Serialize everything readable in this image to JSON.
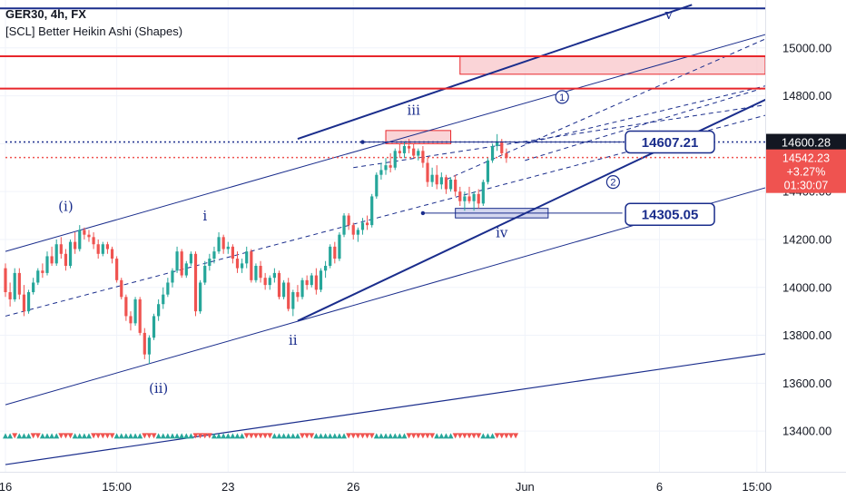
{
  "legend": {
    "symbol_line": "GER30, 4h, FX",
    "indicator_line": "[SCL] Better Heikin Ashi (Shapes)"
  },
  "colors": {
    "bull": "#26a69a",
    "bear": "#ef5350",
    "trend_line": "#1a2d8c",
    "resistance": "#e8262b",
    "zone_fill": "#f8c6c9",
    "demand_fill": "#c5cae9"
  },
  "chart_data": {
    "type": "candlestick",
    "title": "GER30, 4h, FX",
    "subtitle": "[SCL] Better Heikin Ashi (Shapes)",
    "ylim": [
      13230,
      15200
    ],
    "y_ticks": [
      13400,
      13600,
      13800,
      14000,
      14200,
      14400,
      14600,
      14800,
      15000
    ],
    "x_ticks": [
      {
        "label": "16",
        "bar": 0
      },
      {
        "label": "15:00",
        "bar": 24
      },
      {
        "label": "23",
        "bar": 48
      },
      {
        "label": "26",
        "bar": 75
      },
      {
        "label": "Jun",
        "bar": 112
      },
      {
        "label": "6",
        "bar": 141
      },
      {
        "label": "15:00",
        "bar": 162
      }
    ],
    "grid": true,
    "candles": [
      [
        14080,
        14100,
        13960,
        13980
      ],
      [
        13980,
        14020,
        13920,
        13950
      ],
      [
        13950,
        14080,
        13940,
        14060
      ],
      [
        14060,
        14080,
        13950,
        13970
      ],
      [
        13970,
        14010,
        13880,
        13900
      ],
      [
        13900,
        13990,
        13890,
        13980
      ],
      [
        13980,
        14040,
        13970,
        14020
      ],
      [
        14020,
        14080,
        14010,
        14070
      ],
      [
        14070,
        14100,
        14040,
        14060
      ],
      [
        14060,
        14150,
        14050,
        14130
      ],
      [
        14130,
        14170,
        14090,
        14100
      ],
      [
        14100,
        14200,
        14090,
        14180
      ],
      [
        14180,
        14210,
        14120,
        14140
      ],
      [
        14140,
        14160,
        14070,
        14090
      ],
      [
        14090,
        14200,
        14080,
        14190
      ],
      [
        14190,
        14230,
        14140,
        14160
      ],
      [
        14160,
        14260,
        14150,
        14240
      ],
      [
        14240,
        14250,
        14200,
        14220
      ],
      [
        14220,
        14240,
        14190,
        14210
      ],
      [
        14210,
        14230,
        14160,
        14180
      ],
      [
        14180,
        14200,
        14120,
        14140
      ],
      [
        14140,
        14190,
        14130,
        14180
      ],
      [
        14180,
        14190,
        14140,
        14160
      ],
      [
        14160,
        14170,
        14100,
        14120
      ],
      [
        14120,
        14130,
        14020,
        14030
      ],
      [
        14030,
        14040,
        13950,
        13960
      ],
      [
        13960,
        13970,
        13860,
        13880
      ],
      [
        13880,
        13900,
        13820,
        13850
      ],
      [
        13850,
        13960,
        13840,
        13950
      ],
      [
        13950,
        13960,
        13800,
        13810
      ],
      [
        13810,
        13830,
        13700,
        13720
      ],
      [
        13720,
        13800,
        13680,
        13790
      ],
      [
        13790,
        13890,
        13780,
        13880
      ],
      [
        13880,
        13950,
        13860,
        13930
      ],
      [
        13930,
        14000,
        13910,
        13970
      ],
      [
        13970,
        14040,
        13960,
        14020
      ],
      [
        14020,
        14080,
        14000,
        14070
      ],
      [
        14070,
        14170,
        14060,
        14150
      ],
      [
        14150,
        14160,
        14040,
        14050
      ],
      [
        14050,
        14110,
        14040,
        14100
      ],
      [
        14100,
        14150,
        14090,
        14140
      ],
      [
        14140,
        14150,
        13880,
        13900
      ],
      [
        13900,
        14030,
        13890,
        14020
      ],
      [
        14020,
        14110,
        14010,
        14090
      ],
      [
        14090,
        14140,
        14070,
        14120
      ],
      [
        14120,
        14170,
        14100,
        14150
      ],
      [
        14150,
        14230,
        14140,
        14210
      ],
      [
        14210,
        14220,
        14140,
        14160
      ],
      [
        14160,
        14190,
        14140,
        14170
      ],
      [
        14170,
        14180,
        14100,
        14120
      ],
      [
        14120,
        14150,
        14060,
        14080
      ],
      [
        14080,
        14120,
        14060,
        14100
      ],
      [
        14100,
        14170,
        14080,
        14150
      ],
      [
        14150,
        14160,
        14020,
        14030
      ],
      [
        14030,
        14100,
        14020,
        14090
      ],
      [
        14090,
        14110,
        14020,
        14040
      ],
      [
        14040,
        14060,
        13990,
        14010
      ],
      [
        14010,
        14050,
        13990,
        14040
      ],
      [
        14040,
        14080,
        14020,
        14060
      ],
      [
        14060,
        14070,
        13950,
        13960
      ],
      [
        13960,
        14030,
        13950,
        14020
      ],
      [
        14020,
        14040,
        13900,
        13910
      ],
      [
        13910,
        13990,
        13880,
        13980
      ],
      [
        13980,
        14010,
        13940,
        13960
      ],
      [
        13960,
        14040,
        13950,
        14030
      ],
      [
        14030,
        14050,
        13990,
        14010
      ],
      [
        14010,
        14060,
        14000,
        14050
      ],
      [
        14050,
        14080,
        13970,
        13990
      ],
      [
        13990,
        14080,
        13980,
        14070
      ],
      [
        14070,
        14110,
        14040,
        14090
      ],
      [
        14090,
        14180,
        14080,
        14170
      ],
      [
        14170,
        14190,
        14100,
        14120
      ],
      [
        14120,
        14230,
        14110,
        14220
      ],
      [
        14220,
        14310,
        14210,
        14300
      ],
      [
        14300,
        14310,
        14240,
        14260
      ],
      [
        14260,
        14270,
        14200,
        14220
      ],
      [
        14220,
        14250,
        14190,
        14240
      ],
      [
        14240,
        14290,
        14220,
        14270
      ],
      [
        14270,
        14300,
        14240,
        14260
      ],
      [
        14260,
        14390,
        14250,
        14380
      ],
      [
        14380,
        14480,
        14370,
        14470
      ],
      [
        14470,
        14520,
        14450,
        14490
      ],
      [
        14490,
        14540,
        14470,
        14510
      ],
      [
        14510,
        14560,
        14480,
        14500
      ],
      [
        14500,
        14580,
        14490,
        14570
      ],
      [
        14570,
        14600,
        14540,
        14560
      ],
      [
        14560,
        14610,
        14540,
        14590
      ],
      [
        14590,
        14620,
        14560,
        14580
      ],
      [
        14580,
        14600,
        14540,
        14550
      ],
      [
        14550,
        14580,
        14530,
        14570
      ],
      [
        14570,
        14590,
        14500,
        14520
      ],
      [
        14520,
        14540,
        14420,
        14440
      ],
      [
        14440,
        14500,
        14420,
        14470
      ],
      [
        14470,
        14510,
        14410,
        14430
      ],
      [
        14430,
        14480,
        14410,
        14460
      ],
      [
        14460,
        14470,
        14390,
        14410
      ],
      [
        14410,
        14460,
        14400,
        14450
      ],
      [
        14450,
        14470,
        14380,
        14400
      ],
      [
        14400,
        14420,
        14340,
        14360
      ],
      [
        14360,
        14400,
        14320,
        14380
      ],
      [
        14380,
        14420,
        14350,
        14360
      ],
      [
        14360,
        14400,
        14320,
        14390
      ],
      [
        14390,
        14410,
        14330,
        14350
      ],
      [
        14350,
        14450,
        14340,
        14440
      ],
      [
        14440,
        14540,
        14430,
        14530
      ],
      [
        14530,
        14600,
        14520,
        14590
      ],
      [
        14590,
        14640,
        14570,
        14610
      ],
      [
        14610,
        14620,
        14550,
        14560
      ],
      [
        14560,
        14580,
        14520,
        14540
      ]
    ],
    "marker_row": {
      "price": 13380,
      "from_bar": 0,
      "to_bar": 110,
      "colors_cycle": [
        "bull",
        "bull",
        "bear",
        "bull",
        "bull",
        "bull",
        "bear",
        "bear",
        "bull",
        "bull",
        "bull",
        "bull",
        "bear",
        "bear",
        "bear",
        "bull",
        "bull",
        "bull",
        "bull",
        "bear",
        "bear",
        "bear",
        "bear",
        "bear",
        "bull",
        "bull",
        "bull",
        "bull",
        "bull",
        "bull",
        "bear",
        "bear",
        "bear",
        "bull",
        "bull",
        "bull",
        "bull",
        "bull",
        "bull",
        "bull",
        "bull",
        "bear",
        "bear",
        "bear",
        "bear",
        "bull",
        "bull",
        "bull",
        "bull",
        "bull",
        "bull",
        "bull",
        "bear",
        "bear",
        "bear",
        "bear",
        "bear",
        "bear",
        "bull",
        "bull",
        "bull",
        "bull",
        "bull",
        "bull",
        "bear",
        "bear",
        "bear",
        "bull",
        "bull",
        "bull",
        "bull",
        "bull",
        "bull",
        "bull",
        "bear",
        "bear",
        "bear",
        "bear",
        "bear",
        "bear",
        "bull",
        "bull",
        "bull",
        "bull",
        "bull",
        "bull",
        "bull",
        "bear",
        "bear",
        "bear",
        "bear",
        "bear",
        "bear",
        "bull",
        "bull",
        "bull",
        "bull",
        "bear",
        "bear",
        "bear",
        "bear",
        "bear",
        "bear",
        "bull",
        "bull",
        "bull",
        "bear",
        "bear",
        "bear",
        "bear",
        "bear"
      ]
    },
    "horizontal_lines": [
      {
        "price": 15165,
        "color": "trend_line",
        "width": 2,
        "style": "solid"
      },
      {
        "price": 14965,
        "color": "resistance",
        "width": 2,
        "style": "solid"
      },
      {
        "price": 14830,
        "color": "resistance",
        "width": 2,
        "style": "solid"
      },
      {
        "price": 14607,
        "color": "trend_line",
        "width": 1.5,
        "style": "dotted",
        "from_bar": 0
      },
      {
        "price": 14542,
        "color": "bear",
        "width": 1.5,
        "style": "dotted",
        "from_bar": 0
      }
    ],
    "zones": [
      {
        "from_bar": 98,
        "to_bar": 170,
        "top": 14965,
        "bottom": 14890,
        "color": "zone_fill",
        "border": "resistance"
      },
      {
        "from_bar": 82,
        "to_bar": 96,
        "top": 14655,
        "bottom": 14600,
        "color": "zone_fill",
        "border": "resistance"
      },
      {
        "from_bar": 97,
        "to_bar": 117,
        "top": 14330,
        "bottom": 14290,
        "color": "demand_fill",
        "border": "trend_line"
      }
    ],
    "trend_lines": [
      {
        "from": [
          0,
          14150
        ],
        "to": [
          170,
          15090
        ],
        "width": 1,
        "dash": false
      },
      {
        "from": [
          0,
          13510
        ],
        "to": [
          170,
          14450
        ],
        "width": 1,
        "dash": false
      },
      {
        "from": [
          0,
          13260
        ],
        "to": [
          170,
          13740
        ],
        "width": 1.2,
        "dash": false
      },
      {
        "from": [
          0,
          13880
        ],
        "to": [
          170,
          14750
        ],
        "width": 1,
        "dash": true
      },
      {
        "from": [
          75,
          14500
        ],
        "to": [
          170,
          14780
        ],
        "width": 1,
        "dash": true
      },
      {
        "from": [
          95,
          14450
        ],
        "to": [
          170,
          15090
        ],
        "width": 1,
        "dash": true
      },
      {
        "from": [
          112,
          14600
        ],
        "to": [
          170,
          14870
        ],
        "width": 1,
        "dash": true
      },
      {
        "from": [
          63,
          14620
        ],
        "to": [
          148,
          15180
        ],
        "width": 2,
        "dash": false
      },
      {
        "from": [
          63,
          13860
        ],
        "to": [
          170,
          14840
        ],
        "width": 2,
        "dash": false
      },
      {
        "from": [
          112,
          14530
        ],
        "to": [
          163,
          14830
        ],
        "width": 1,
        "dash": true
      }
    ],
    "reference_points": [
      {
        "bar": 77,
        "price": 14607
      },
      {
        "bar": 90,
        "price": 14310
      }
    ],
    "callout_lines": [
      {
        "from": [
          77,
          14607
        ],
        "to": [
          133,
          14607
        ]
      },
      {
        "from": [
          90,
          14310
        ],
        "to": [
          133,
          14310
        ]
      }
    ],
    "wave_labels": [
      {
        "text": "(i)",
        "bar": 13,
        "price": 14320
      },
      {
        "text": "(ii)",
        "bar": 33,
        "price": 13560
      },
      {
        "text": "i",
        "bar": 43,
        "price": 14280
      },
      {
        "text": "ii",
        "bar": 62,
        "price": 13760
      },
      {
        "text": "iii",
        "bar": 88,
        "price": 14720
      },
      {
        "text": "iv",
        "bar": 107,
        "price": 14210
      },
      {
        "text": "v",
        "bar": 143,
        "price": 15120
      }
    ],
    "circled_labels": [
      {
        "text": "1",
        "bar": 120,
        "price": 14795
      },
      {
        "text": "2",
        "bar": 131,
        "price": 14440
      }
    ],
    "price_callouts": [
      {
        "text": "14607.21",
        "bar": 137,
        "price": 14607
      },
      {
        "text": "14305.05",
        "bar": 137,
        "price": 14305
      }
    ],
    "axis_labels": {
      "last_price": "14600.28",
      "current_price": "14542.23",
      "change": "+3.27%",
      "countdown": "01:30:07"
    }
  }
}
